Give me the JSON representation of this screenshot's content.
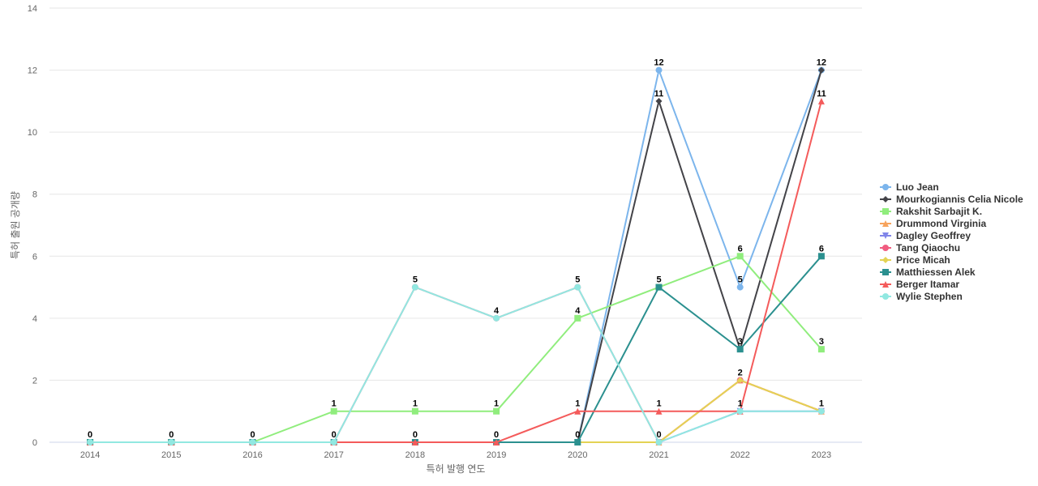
{
  "chart_data": {
    "type": "line",
    "xlabel": "특허 발행 연도",
    "ylabel": "특허 출원 공개량",
    "categories": [
      "2014",
      "2015",
      "2016",
      "2017",
      "2018",
      "2019",
      "2020",
      "2021",
      "2022",
      "2023"
    ],
    "ylim": [
      0,
      14
    ],
    "yticks": [
      0,
      2,
      4,
      6,
      8,
      10,
      12,
      14
    ],
    "grid": true,
    "legend_position": "right",
    "series": [
      {
        "name": "Luo Jean",
        "color": "#7cb5ec",
        "marker": "circle",
        "values": [
          0,
          0,
          0,
          0,
          0,
          0,
          0,
          12,
          5,
          12
        ]
      },
      {
        "name": "Mourkogiannis Celia Nicole",
        "color": "#434348",
        "marker": "diamond",
        "values": [
          0,
          0,
          0,
          0,
          0,
          0,
          0,
          11,
          3,
          12
        ]
      },
      {
        "name": "Rakshit Sarbajit K.",
        "color": "#90ed7d",
        "marker": "square",
        "values": [
          0,
          0,
          0,
          1,
          1,
          1,
          4,
          5,
          6,
          3
        ]
      },
      {
        "name": "Drummond Virginia",
        "color": "#f7a35c",
        "marker": "triangle",
        "values": [
          0,
          0,
          0,
          0,
          0,
          0,
          0,
          0,
          2,
          1
        ]
      },
      {
        "name": "Dagley Geoffrey",
        "color": "#8085e9",
        "marker": "triangle-down",
        "values": [
          0,
          0,
          0,
          0,
          0,
          0,
          0,
          0,
          1,
          1
        ]
      },
      {
        "name": "Tang Qiaochu",
        "color": "#f15c80",
        "marker": "circle",
        "values": [
          0,
          0,
          0,
          0,
          5,
          4,
          5,
          0,
          2,
          1
        ]
      },
      {
        "name": "Price Micah",
        "color": "#e4d354",
        "marker": "diamond",
        "values": [
          0,
          0,
          0,
          0,
          0,
          0,
          0,
          0,
          2,
          1
        ]
      },
      {
        "name": "Matthiessen Alek",
        "color": "#2b908f",
        "marker": "square",
        "values": [
          0,
          0,
          0,
          0,
          0,
          0,
          0,
          5,
          3,
          6
        ]
      },
      {
        "name": "Berger Itamar",
        "color": "#f45b5b",
        "marker": "triangle",
        "values": [
          0,
          0,
          0,
          0,
          0,
          0,
          1,
          1,
          1,
          11
        ]
      },
      {
        "name": "Wylie Stephen",
        "color": "#91e8e1",
        "marker": "circle",
        "values": [
          0,
          0,
          0,
          0,
          5,
          4,
          5,
          0,
          1,
          1
        ]
      }
    ],
    "data_labels": [
      {
        "x": "2014",
        "text": "0"
      },
      {
        "x": "2015",
        "text": "0"
      },
      {
        "x": "2016",
        "text": "0"
      },
      {
        "x": "2017",
        "text": "0"
      },
      {
        "x": "2017",
        "text": "1"
      },
      {
        "x": "2018",
        "text": "0"
      },
      {
        "x": "2018",
        "text": "1"
      },
      {
        "x": "2018",
        "text": "5"
      },
      {
        "x": "2019",
        "text": "0"
      },
      {
        "x": "2019",
        "text": "1"
      },
      {
        "x": "2019",
        "text": "4"
      },
      {
        "x": "2020",
        "text": "0"
      },
      {
        "x": "2020",
        "text": "1"
      },
      {
        "x": "2020",
        "text": "4"
      },
      {
        "x": "2020",
        "text": "5"
      },
      {
        "x": "2021",
        "text": "0"
      },
      {
        "x": "2021",
        "text": "1"
      },
      {
        "x": "2021",
        "text": "5"
      },
      {
        "x": "2021",
        "text": "11"
      },
      {
        "x": "2021",
        "text": "12"
      },
      {
        "x": "2022",
        "text": "1"
      },
      {
        "x": "2022",
        "text": "2"
      },
      {
        "x": "2022",
        "text": "3"
      },
      {
        "x": "2022",
        "text": "5"
      },
      {
        "x": "2022",
        "text": "6"
      },
      {
        "x": "2023",
        "text": "1"
      },
      {
        "x": "2023",
        "text": "3"
      },
      {
        "x": "2023",
        "text": "6"
      },
      {
        "x": "2023",
        "text": "11"
      },
      {
        "x": "2023",
        "text": "12"
      }
    ]
  }
}
